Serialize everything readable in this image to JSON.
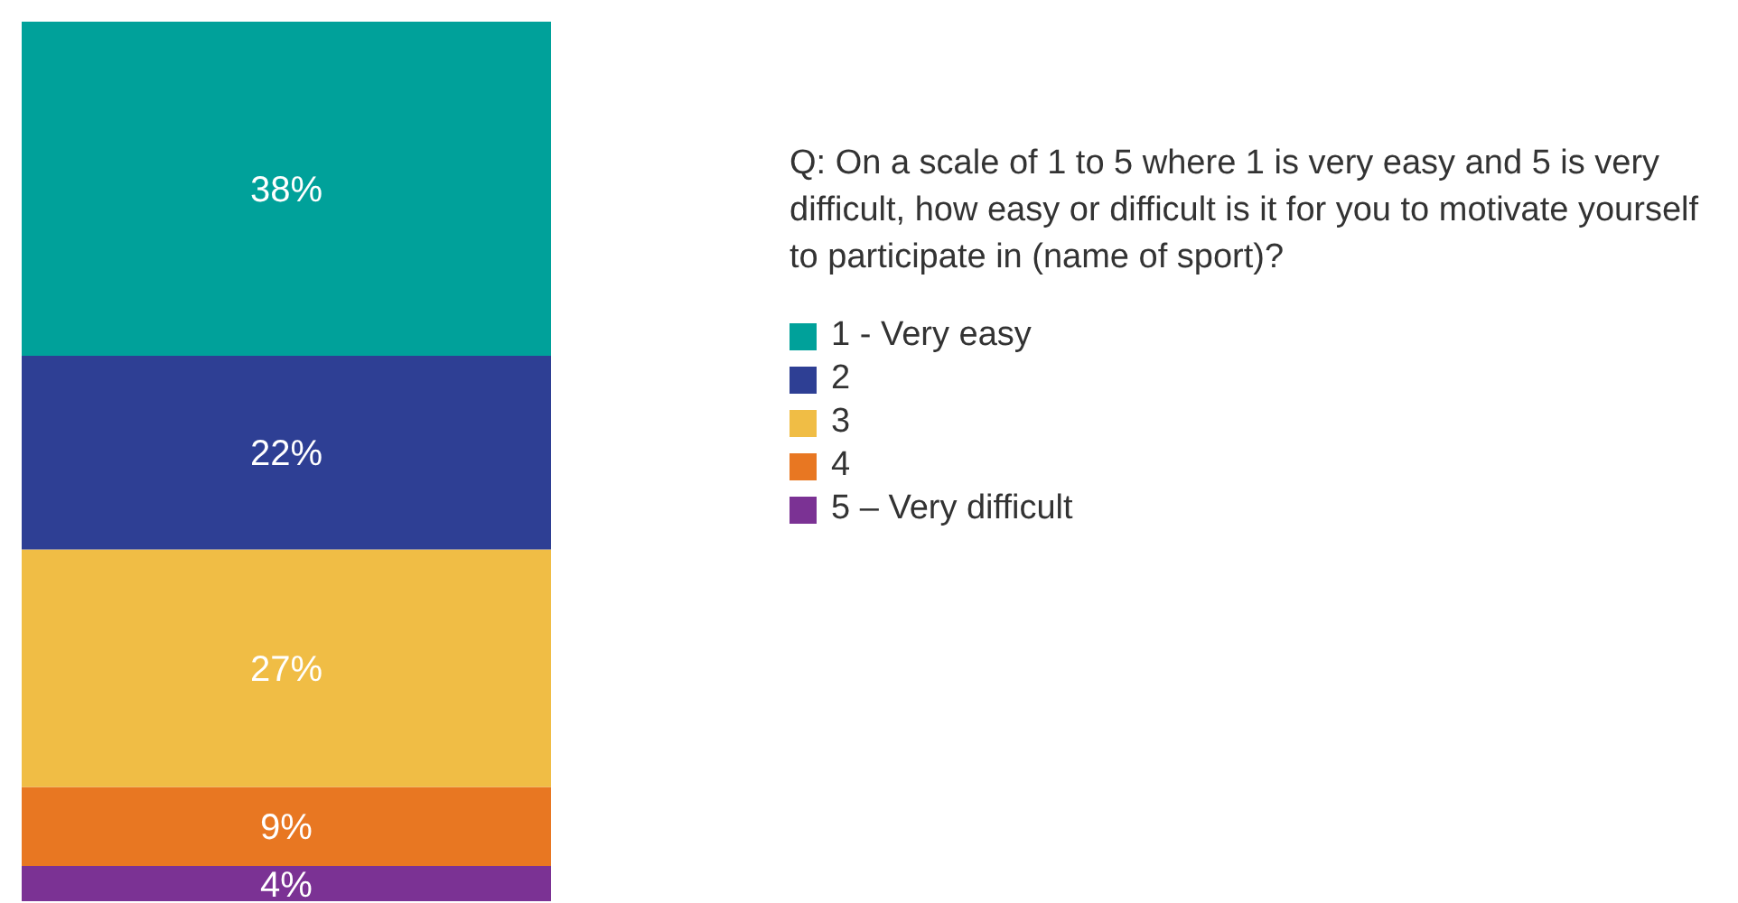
{
  "chart_data": {
    "type": "bar",
    "stacked": true,
    "categories": [
      null
    ],
    "ylim": [
      0,
      100
    ],
    "tick_labels": false,
    "grid": false,
    "legend": "right",
    "legend_title": "Q: On a scale of 1 to 5 where 1 is very easy and 5 is very difficult, how easy or difficult is it for you to motivate yourself to participate in (name of sport)?",
    "series": [
      {
        "name": "5 – Very difficult",
        "color": "#7b3294",
        "values": [
          4
        ],
        "value_labels": [
          "4%"
        ]
      },
      {
        "name": "4",
        "color": "#e87722",
        "values": [
          9
        ],
        "value_labels": [
          "9%"
        ]
      },
      {
        "name": "3",
        "color": "#f0bd45",
        "values": [
          27
        ],
        "value_labels": [
          "27%"
        ]
      },
      {
        "name": "2",
        "color": "#2e3f94",
        "values": [
          22
        ],
        "value_labels": [
          "22%"
        ]
      },
      {
        "name": "1 - Very easy",
        "color": "#00a19a",
        "values": [
          38
        ],
        "value_labels": [
          "38%"
        ]
      }
    ]
  }
}
